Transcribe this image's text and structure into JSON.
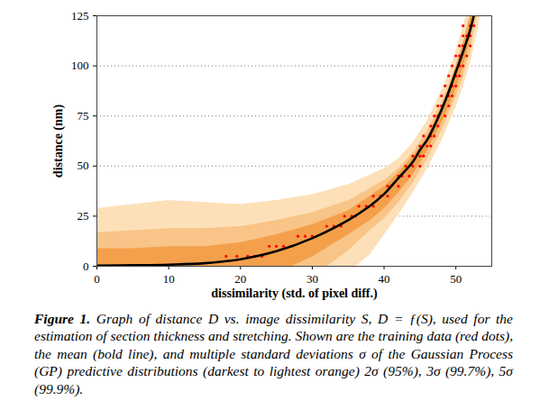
{
  "chart_data": {
    "type": "line",
    "xlabel": "dissimilarity (std. of pixel diff.)",
    "ylabel": "distance (nm)",
    "caption_label": "Figure 1.",
    "caption": "Graph of distance D vs. image dissimilarity S, D = ƒ(S), used for the estimation of section thickness and stretching. Shown are the training data (red dots), the mean (bold line), and multiple standard deviations σ of the Gaussian Process (GP) predictive distributions (darkest to lightest orange) 2σ (95%), 3σ (99.7%), 5σ (99.9%).",
    "xlim": [
      0,
      55
    ],
    "xticks": [
      0,
      10,
      20,
      30,
      40,
      50
    ],
    "ylim": [
      0,
      125
    ],
    "yticks": [
      0,
      25,
      50,
      75,
      100,
      125
    ],
    "grid": "y",
    "series": [
      {
        "type": "area",
        "color": "#fde0b8",
        "upper_x": [
          0,
          5,
          10,
          15,
          20,
          25,
          30,
          35,
          40,
          42,
          44,
          46,
          48,
          49,
          50,
          51,
          51.5
        ],
        "upper": [
          29,
          31,
          33,
          32,
          31,
          33,
          36,
          41,
          49,
          54,
          62,
          73,
          88,
          97,
          108,
          120,
          127
        ],
        "lower_x": [
          0,
          36,
          38,
          40,
          42,
          44,
          46,
          48,
          50,
          51,
          52,
          53,
          53.5
        ],
        "lower": [
          0,
          0,
          6,
          16,
          26,
          37,
          49,
          63,
          80,
          90,
          102,
          118,
          128
        ]
      },
      {
        "type": "area",
        "color": "#f9c487",
        "upper_x": [
          0,
          5,
          10,
          15,
          20,
          25,
          30,
          35,
          40,
          42,
          44,
          46,
          48,
          49,
          50,
          51,
          52
        ],
        "upper": [
          17,
          18,
          19,
          19,
          20,
          23,
          27,
          33,
          43,
          49,
          57,
          68,
          82,
          91,
          101,
          113,
          127
        ],
        "lower_x": [
          0,
          32,
          35,
          38,
          40,
          42,
          44,
          46,
          48,
          50,
          51,
          52,
          53
        ],
        "lower": [
          0,
          0,
          8,
          18,
          24,
          32,
          42,
          54,
          68,
          85,
          95,
          108,
          127
        ]
      },
      {
        "type": "area",
        "color": "#f4a04b",
        "upper_x": [
          0,
          5,
          10,
          15,
          20,
          25,
          30,
          35,
          40,
          42,
          44,
          46,
          48,
          49,
          50,
          51,
          52
        ],
        "upper": [
          9,
          9,
          10,
          10,
          12,
          16,
          21,
          28,
          40,
          47,
          55,
          65,
          80,
          89,
          100,
          111,
          125
        ],
        "lower_x": [
          0,
          27,
          30,
          35,
          38,
          40,
          42,
          44,
          46,
          48,
          49,
          50,
          51,
          52,
          52.5
        ],
        "lower": [
          0,
          0,
          5,
          16,
          23,
          29,
          37,
          46,
          58,
          72,
          80,
          89,
          100,
          114,
          127
        ]
      },
      {
        "type": "scatter",
        "color": "#ff0000",
        "marker": "circle",
        "x": [
          18,
          19.5,
          21,
          22,
          23,
          24,
          25,
          26,
          27,
          28,
          29,
          30,
          32,
          33,
          34,
          34.5,
          35.5,
          36,
          36.5,
          37.5,
          38.5,
          38.5,
          39.5,
          40.5,
          40.5,
          41,
          42,
          42,
          42.5,
          43.5,
          43,
          44,
          45,
          44,
          45,
          45.5,
          45,
          46,
          46.5,
          45.5,
          46.5,
          47,
          46.5,
          47,
          47.5,
          47,
          47.5,
          48.5,
          47.5,
          48,
          49,
          48,
          49,
          49.5,
          48.5,
          49.5,
          50,
          49,
          50,
          50.5,
          49.5,
          50.5,
          51,
          50,
          50.5,
          51.5,
          50.5,
          51,
          52,
          51,
          51.5,
          52,
          51,
          52,
          52.5
        ],
        "values": [
          5,
          5,
          5,
          5,
          5,
          10,
          10,
          10,
          10,
          15,
          15,
          15,
          20,
          20,
          20,
          25,
          25,
          25,
          30,
          30,
          30,
          35,
          35,
          35,
          40,
          40,
          40,
          45,
          45,
          45,
          50,
          50,
          50,
          55,
          55,
          55,
          60,
          60,
          60,
          65,
          65,
          65,
          70,
          70,
          70,
          75,
          75,
          75,
          80,
          80,
          80,
          85,
          85,
          85,
          90,
          90,
          90,
          95,
          95,
          95,
          100,
          100,
          100,
          105,
          105,
          105,
          110,
          110,
          110,
          115,
          115,
          115,
          120,
          120,
          120
        ]
      },
      {
        "type": "line",
        "color": "#000000",
        "line_style": "solid",
        "x": [
          0,
          5,
          10,
          15,
          20,
          25,
          30,
          35,
          38,
          40,
          42,
          44,
          45,
          46,
          47,
          48,
          49,
          50,
          51,
          52,
          52.5
        ],
        "values": [
          0.3,
          0.5,
          0.8,
          1.5,
          3.5,
          7.5,
          14,
          23,
          30,
          36,
          44,
          52,
          58,
          63,
          70,
          78,
          87,
          97,
          107,
          118,
          125
        ]
      }
    ]
  }
}
